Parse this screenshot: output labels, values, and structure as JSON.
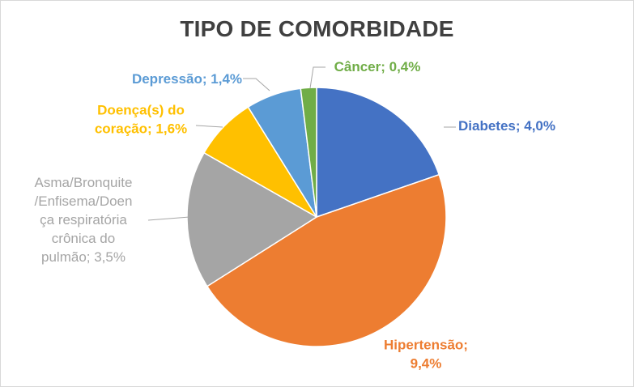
{
  "chart_data": {
    "type": "pie",
    "title": "TIPO DE COMORBIDADE",
    "slices": [
      {
        "name": "Diabetes",
        "value": 4.0,
        "value_label": "4,0%",
        "color": "#4472c4",
        "label_lines": [
          "Diabetes; 4,0%"
        ]
      },
      {
        "name": "Hipertensão",
        "value": 9.4,
        "value_label": "9,4%",
        "color": "#ed7d31",
        "label_lines": [
          "Hipertensão;",
          "9,4%"
        ]
      },
      {
        "name": "Asma/Bronquite/Enfisema/Doença respiratória crônica do pulmão",
        "value": 3.5,
        "value_label": "3,5%",
        "color": "#a5a5a5",
        "label_lines": [
          "Asma/Bronquite",
          "/Enfisema/Doen",
          "ça respiratória",
          "crônica  do",
          "pulmão; 3,5%"
        ]
      },
      {
        "name": "Doença(s) do coração",
        "value": 1.6,
        "value_label": "1,6%",
        "color": "#ffc000",
        "label_lines": [
          "Doença(s) do",
          "coração; 1,6%"
        ]
      },
      {
        "name": "Depressão",
        "value": 1.4,
        "value_label": "1,4%",
        "color": "#5b9bd5",
        "label_lines": [
          "Depressão; 1,4%"
        ]
      },
      {
        "name": "Câncer",
        "value": 0.4,
        "value_label": "0,4%",
        "color": "#70ad47",
        "label_lines": [
          "Câncer; 0,4%"
        ]
      }
    ],
    "leader_line_color": "#a6a6a6",
    "legend": "none"
  }
}
